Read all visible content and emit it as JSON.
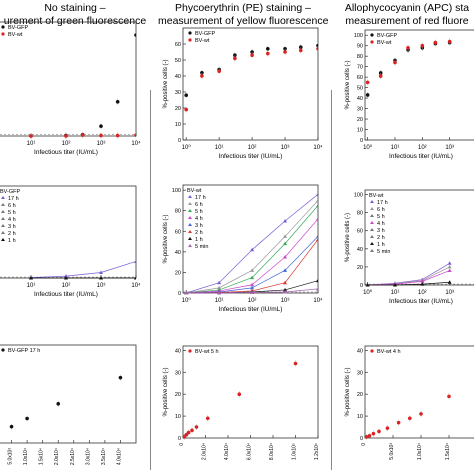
{
  "columns": [
    {
      "title_line1": "No staining –",
      "title_line2": "urement of green fluorescence"
    },
    {
      "title_line1": "Phycoerythrin (PE) staining –",
      "title_line2": "measurement of yellow fluorescence"
    },
    {
      "title_line1": "Allophycocyanin (APC) sta",
      "title_line2": "measurement of red fluore"
    }
  ],
  "colors": {
    "black": "#111111",
    "red": "#dd2222",
    "gfp_line": "#7b5cd6",
    "ref_line": "#555555"
  },
  "chart_data": [
    {
      "id": "top-left",
      "type": "scatter",
      "xscale": "log",
      "xlim": [
        1,
        10000
      ],
      "ylim": [
        0,
        70
      ],
      "xlabel": "Infectious titer (IU/mL)",
      "ylabel": "",
      "xticks": [
        "10¹",
        "10²",
        "10³",
        "10⁴"
      ],
      "legend": [
        "BV-GFP",
        "BV-wt"
      ],
      "series": [
        {
          "name": "BV-GFP",
          "color": "#111111",
          "x": [
            10,
            100,
            300,
            1000,
            3000,
            10000
          ],
          "y": [
            0,
            0.3,
            0.8,
            6,
            21,
            62
          ]
        },
        {
          "name": "BV-wt",
          "color": "#dd2222",
          "x": [
            10,
            100,
            300,
            1000,
            3000,
            10000
          ],
          "y": [
            0,
            0,
            0.5,
            0.3,
            0.3,
            0.5
          ]
        }
      ]
    },
    {
      "id": "top-mid",
      "type": "scatter",
      "xscale": "log",
      "xlim": [
        0.8,
        10000
      ],
      "ylim": [
        0,
        70
      ],
      "xlabel": "Infectious titer (IU/mL)",
      "ylabel": "%-positive cells (-)",
      "xticks": [
        "10⁰",
        "10¹",
        "10²",
        "10³",
        "10⁴"
      ],
      "yticks": [
        "0",
        "10",
        "20",
        "30",
        "40",
        "50",
        "60"
      ],
      "legend": [
        "BV-GFP",
        "BV-wt"
      ],
      "series": [
        {
          "name": "BV-GFP",
          "color": "#111111",
          "x": [
            1,
            3,
            10,
            30,
            100,
            300,
            1000,
            3000,
            10000
          ],
          "y": [
            28,
            42,
            44,
            53,
            55,
            57,
            57,
            58,
            59
          ]
        },
        {
          "name": "BV-wt",
          "color": "#dd2222",
          "x": [
            1,
            3,
            10,
            30,
            100,
            300,
            1000,
            3000,
            10000
          ],
          "y": [
            19,
            40,
            43,
            51,
            53,
            54,
            55,
            56,
            57
          ]
        }
      ]
    },
    {
      "id": "top-right",
      "type": "scatter",
      "xscale": "log",
      "xlim": [
        0.8,
        10000
      ],
      "ylim": [
        0,
        105
      ],
      "xlabel": "Infectious titer (IU/mL)",
      "ylabel": "%-positive cells (-)",
      "xticks": [
        "10⁰",
        "10¹",
        "10²",
        "10³"
      ],
      "yticks": [
        "0",
        "10",
        "20",
        "30",
        "40",
        "50",
        "60",
        "70",
        "80",
        "90",
        "100"
      ],
      "legend": [
        "BV-GFP",
        "BV-wt"
      ],
      "series": [
        {
          "name": "BV-GFP",
          "color": "#111111",
          "x": [
            1,
            3,
            10,
            30,
            100,
            300,
            1000
          ],
          "y": [
            43,
            64,
            76,
            86,
            88,
            92,
            93
          ]
        },
        {
          "name": "BV-wt",
          "color": "#dd2222",
          "x": [
            1,
            3,
            10,
            30,
            100,
            300,
            1000
          ],
          "y": [
            55,
            61,
            74,
            88,
            90,
            93,
            94
          ]
        }
      ]
    },
    {
      "id": "mid-left",
      "type": "line",
      "xscale": "log",
      "xlim": [
        1,
        10000
      ],
      "ylim": [
        0,
        100
      ],
      "xlabel": "Infectious titer (IU/mL)",
      "ylabel": "",
      "xticks": [
        "10¹",
        "10²",
        "10³",
        "10⁴"
      ],
      "legend_title": "BV-GFP",
      "legend": [
        "17 h",
        "6 h",
        "5 h",
        "4 h",
        "3 h",
        "2 h",
        "1 h"
      ],
      "series": [
        {
          "name": "17 h",
          "color": "#7b5cd6",
          "x": [
            10,
            100,
            1000,
            10000
          ],
          "y": [
            0.5,
            2,
            6,
            18
          ]
        },
        {
          "name": "1 h",
          "color": "#111111",
          "x": [
            10,
            100,
            1000,
            10000
          ],
          "y": [
            0,
            0,
            0,
            0
          ]
        }
      ]
    },
    {
      "id": "mid-mid",
      "type": "line",
      "xscale": "log",
      "xlim": [
        0.8,
        10000
      ],
      "ylim": [
        0,
        105
      ],
      "xlabel": "Infectious titer (IU/mL)",
      "ylabel": "%-positive cells (-)",
      "xticks": [
        "10⁰",
        "10¹",
        "10²",
        "10³",
        "10⁴"
      ],
      "yticks": [
        "0",
        "20",
        "40",
        "60",
        "80",
        "100"
      ],
      "legend_title": "BV-wt",
      "legend": [
        "17 h",
        "6 h",
        "5 h",
        "4 h",
        "3 h",
        "2 h",
        "1 h",
        "5 min"
      ],
      "series": [
        {
          "name": "17 h",
          "color": "#7b5cd6",
          "x": [
            1,
            10,
            100,
            1000,
            10000
          ],
          "y": [
            0,
            10,
            42,
            70,
            96
          ]
        },
        {
          "name": "6 h",
          "color": "#999999",
          "x": [
            1,
            10,
            100,
            1000,
            10000
          ],
          "y": [
            0,
            5,
            22,
            55,
            90
          ]
        },
        {
          "name": "5 h",
          "color": "#33aa55",
          "x": [
            1,
            10,
            100,
            1000,
            10000
          ],
          "y": [
            0,
            3,
            15,
            48,
            85
          ]
        },
        {
          "name": "4 h",
          "color": "#cc44cc",
          "x": [
            1,
            10,
            100,
            1000,
            10000
          ],
          "y": [
            0,
            2,
            8,
            35,
            72
          ]
        },
        {
          "name": "3 h",
          "color": "#4466dd",
          "x": [
            1,
            10,
            100,
            1000,
            10000
          ],
          "y": [
            0,
            1,
            5,
            22,
            55
          ]
        },
        {
          "name": "2 h",
          "color": "#dd3333",
          "x": [
            1,
            10,
            100,
            1000,
            10000
          ],
          "y": [
            0,
            0.5,
            2,
            10,
            52
          ]
        },
        {
          "name": "1 h",
          "color": "#111111",
          "x": [
            1,
            10,
            100,
            1000,
            10000
          ],
          "y": [
            0,
            0,
            1,
            3,
            12
          ]
        },
        {
          "name": "5 min",
          "color": "#aa66bb",
          "x": [
            1,
            10,
            100,
            1000,
            10000
          ],
          "y": [
            0,
            0,
            0.5,
            1,
            4
          ]
        }
      ]
    },
    {
      "id": "mid-right",
      "type": "line",
      "xscale": "log",
      "xlim": [
        0.8,
        10000
      ],
      "ylim": [
        0,
        105
      ],
      "xlabel": "Infectious titer (IU/mL)",
      "ylabel": "%-positive cells (-)",
      "xticks": [
        "10⁰",
        "10¹",
        "10²",
        "10³"
      ],
      "yticks": [
        "0",
        "20",
        "40",
        "60",
        "80",
        "100"
      ],
      "legend_title": "BV-wt",
      "legend": [
        "17 h",
        "6 h",
        "5 h",
        "4 h",
        "3 h",
        "2 h",
        "1 h",
        "5 min"
      ],
      "series": [
        {
          "name": "17 h",
          "color": "#7b5cd6",
          "x": [
            1,
            10,
            100,
            1000
          ],
          "y": [
            0,
            2,
            6,
            24
          ]
        },
        {
          "name": "6 h",
          "color": "#999999",
          "x": [
            1,
            10,
            100,
            1000
          ],
          "y": [
            0,
            1.5,
            5,
            20
          ]
        },
        {
          "name": "4 h",
          "color": "#cc44cc",
          "x": [
            1,
            10,
            100,
            1000
          ],
          "y": [
            0,
            1,
            4,
            16
          ]
        },
        {
          "name": "1 h",
          "color": "#111111",
          "x": [
            1,
            10,
            100,
            1000
          ],
          "y": [
            0,
            0,
            1,
            3
          ]
        }
      ]
    },
    {
      "id": "bot-left",
      "type": "scatter",
      "xscale": "linear",
      "xlim": [
        0,
        45000
      ],
      "ylim": [
        0,
        60
      ],
      "xlabel": "",
      "ylabel": "",
      "xticks": [
        "0",
        "5.0x10³",
        "1.0x10⁴",
        "1.5x10⁴",
        "2.0x10⁴",
        "2.5x10⁴",
        "3.0x10⁴",
        "3.5x10⁴",
        "4.0x10⁴"
      ],
      "legend": [
        "BV-GFP 17 h"
      ],
      "series": [
        {
          "name": "BV-GFP 17 h",
          "color": "#111111",
          "x": [
            500,
            5000,
            10000,
            20000,
            40000
          ],
          "y": [
            3,
            10,
            15,
            24,
            40
          ]
        }
      ]
    },
    {
      "id": "bot-mid",
      "type": "scatter",
      "xscale": "linear",
      "xlim": [
        0,
        120000
      ],
      "ylim": [
        0,
        42
      ],
      "xlabel": "",
      "ylabel": "%-positive cells (-)",
      "xticks": [
        "0",
        "2.0x10⁴",
        "4.0x10⁴",
        "6.0x10⁴",
        "8.0x10⁴",
        "1.0x10⁵",
        "1.2x10⁵"
      ],
      "yticks": [
        "0",
        "10",
        "20",
        "30",
        "40"
      ],
      "legend": [
        "BV-wt 5 h"
      ],
      "series": [
        {
          "name": "BV-wt 5 h",
          "color": "#dd2222",
          "x": [
            1000,
            3000,
            5000,
            8000,
            12000,
            22000,
            50000,
            100000
          ],
          "y": [
            0.5,
            1.5,
            2.5,
            3.5,
            5,
            9,
            20,
            34
          ]
        }
      ]
    },
    {
      "id": "bot-right",
      "type": "scatter",
      "xscale": "linear",
      "xlim": [
        0,
        20000
      ],
      "ylim": [
        0,
        42
      ],
      "xlabel": "",
      "ylabel": "%-positive cells (-)",
      "xticks": [
        "0",
        "5.0x10³",
        "1.0x10⁴",
        "1.5x10⁴",
        "2.0x10⁴"
      ],
      "yticks": [
        "0",
        "10",
        "20",
        "30",
        "40"
      ],
      "legend": [
        "BV-wt 4 h"
      ],
      "series": [
        {
          "name": "BV-wt 4 h",
          "color": "#dd2222",
          "x": [
            300,
            800,
            1500,
            2500,
            4000,
            6000,
            8000,
            10000,
            15000
          ],
          "y": [
            0.5,
            1,
            2,
            3,
            4.5,
            7,
            9,
            11,
            19
          ]
        }
      ]
    }
  ]
}
